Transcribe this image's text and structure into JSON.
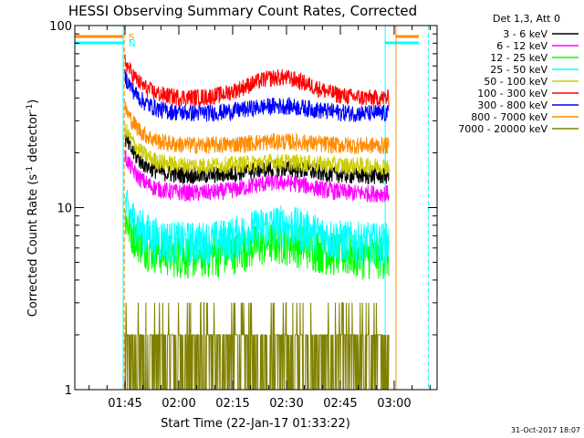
{
  "chart_data": {
    "type": "line",
    "title": "HESSI Observing Summary Count Rates, Corrected",
    "xlabel": "Start Time (22-Jan-17 01:33:22)",
    "ylabel_main": "Corrected Count Rate (s",
    "ylabel_sup1": "-1",
    "ylabel_mid": " detector",
    "ylabel_sup2": "-1",
    "ylabel_end": ")",
    "yscale": "log",
    "ylim": [
      1,
      100
    ],
    "xlim_min": [
      -12,
      87
    ],
    "x_ticks": [
      {
        "min": 0,
        "label": "01:45"
      },
      {
        "min": 15,
        "label": "02:00"
      },
      {
        "min": 30,
        "label": "02:15"
      },
      {
        "min": 45,
        "label": "02:30"
      },
      {
        "min": 60,
        "label": "02:45"
      },
      {
        "min": 75,
        "label": "03:00"
      }
    ],
    "y_ticks": [
      {
        "value": 1,
        "label": "1"
      },
      {
        "value": 10,
        "label": "10"
      },
      {
        "value": 100,
        "label": "100"
      }
    ],
    "legend_title": "Det 1,3, Att 0",
    "legend_position": "right",
    "footer_date": "31-Oct-2017 18:07",
    "flags": [
      {
        "label": "S",
        "color": "#ff8c00",
        "gaps_min": [
          [
            -0.5,
            75.5
          ]
        ]
      },
      {
        "label": "N",
        "color": "#00ffff",
        "gaps_min": [
          [
            -0.5,
            72.5
          ]
        ]
      }
    ],
    "night_lines_min": [
      -0.5,
      -0.2,
      72.5,
      75.5,
      84.5
    ],
    "data_window_min": [
      0,
      73.5
    ],
    "series": [
      {
        "name": "3 - 6 keV",
        "color": "#000000",
        "base": 15,
        "hump": 1.1
      },
      {
        "name": "6 - 12 keV",
        "color": "#ff00ff",
        "base": 12,
        "hump": 1.15
      },
      {
        "name": "12 - 25 keV",
        "color": "#00ff00",
        "base": 5.5,
        "hump": 1.2
      },
      {
        "name": "25 - 50 keV",
        "color": "#00ffff",
        "base": 6.5,
        "hump": 1.25
      },
      {
        "name": "50 - 100 keV",
        "color": "#cccc00",
        "base": 17,
        "hump": 1.05
      },
      {
        "name": "100 - 300 keV",
        "color": "#ff0000",
        "base": 40,
        "hump": 1.3
      },
      {
        "name": "300 - 800 keV",
        "color": "#0000ff",
        "base": 33,
        "hump": 1.1
      },
      {
        "name": "800 - 7000 keV",
        "color": "#ff8c00",
        "base": 22,
        "hump": 1.05
      },
      {
        "name": "7000 - 20000 keV",
        "color": "#808000",
        "base": 1.5,
        "hump": 1.0
      }
    ]
  }
}
